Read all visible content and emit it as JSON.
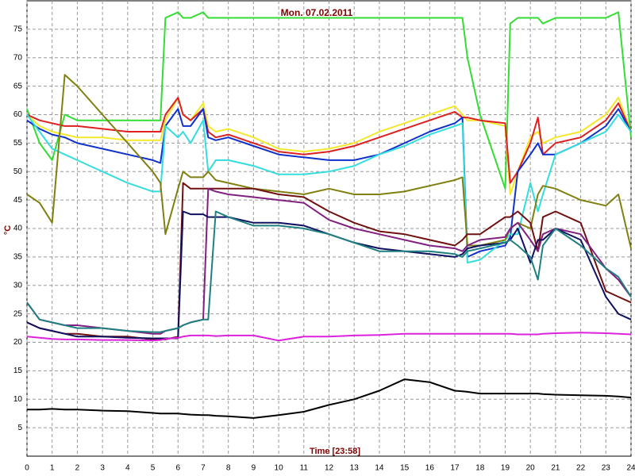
{
  "chart_data": {
    "type": "line",
    "title": "Mon. 07.02.2011",
    "x_label": "Time [23:58]",
    "y_label": "°C",
    "x": [
      0,
      0.5,
      1,
      1.5,
      2,
      3,
      4,
      5,
      5.3,
      5.5,
      6,
      6.2,
      6.5,
      7,
      7.2,
      7.5,
      8,
      9,
      10,
      11,
      12,
      13,
      14,
      15,
      16,
      17,
      17.3,
      17.5,
      18,
      19,
      19.2,
      19.5,
      20,
      20.3,
      20.5,
      21,
      22,
      23,
      23.5,
      24
    ],
    "xlim": [
      0,
      24
    ],
    "xticks": [
      0,
      1,
      2,
      3,
      4,
      5,
      6,
      7,
      8,
      9,
      10,
      11,
      12,
      13,
      14,
      15,
      16,
      17,
      18,
      19,
      20,
      21,
      22,
      23,
      24
    ],
    "ylim": [
      0,
      80
    ],
    "yticks": [
      5,
      10,
      15,
      20,
      25,
      30,
      35,
      40,
      45,
      50,
      55,
      60,
      65,
      70,
      75
    ],
    "grid": true,
    "series": [
      {
        "color": "#33dd33",
        "values": [
          61,
          55,
          52,
          60,
          59,
          59,
          59,
          59,
          59,
          77,
          78,
          77,
          77,
          78,
          77,
          77,
          77,
          77,
          77,
          77,
          77,
          77,
          77,
          77,
          77,
          77,
          77,
          70,
          60,
          47,
          76,
          77,
          77,
          77,
          76,
          77,
          77,
          77,
          78,
          56
        ]
      },
      {
        "color": "#f4e82a",
        "values": [
          60,
          58,
          57,
          56.5,
          56,
          56,
          55.5,
          55.5,
          55.5,
          59,
          63,
          60,
          59,
          62,
          58,
          57,
          57.5,
          56,
          54,
          53.5,
          54,
          55,
          57,
          58.5,
          60,
          61.5,
          60,
          59,
          59,
          58,
          46,
          50,
          56,
          57,
          55,
          56,
          57,
          60,
          63,
          57
        ]
      },
      {
        "color": "#dd2020",
        "values": [
          60,
          59,
          58.5,
          58,
          58,
          57.5,
          57,
          57,
          57,
          60,
          63,
          60,
          59,
          61,
          57,
          56,
          56.5,
          55,
          53.5,
          53,
          53.5,
          54.5,
          56,
          57.5,
          59,
          60.5,
          59.5,
          59.5,
          59,
          58.5,
          48,
          50,
          55,
          59.5,
          53,
          55,
          56,
          59,
          62,
          57
        ]
      },
      {
        "color": "#1030cc",
        "values": [
          59,
          57.5,
          56.5,
          56,
          55,
          54,
          53,
          52,
          51.5,
          58,
          61,
          58,
          58,
          61,
          56,
          55.5,
          56,
          54.5,
          53,
          52.5,
          52,
          52,
          53,
          55,
          57,
          58.5,
          59.5,
          35,
          36,
          37,
          38.5,
          50,
          53,
          55,
          53,
          53,
          55,
          58,
          61,
          57
        ]
      },
      {
        "color": "#33dddd",
        "values": [
          60,
          57,
          54,
          53,
          52,
          50,
          48,
          46.5,
          46.5,
          58,
          56,
          57,
          55,
          59,
          50,
          52,
          52,
          51,
          49.5,
          49.5,
          50,
          51,
          53,
          54.5,
          56.5,
          58,
          58.5,
          34,
          34.5,
          38,
          39,
          39,
          48,
          43,
          46,
          53,
          55,
          57,
          60,
          57
        ]
      },
      {
        "color": "#808010",
        "values": [
          46,
          44.5,
          41,
          67,
          65,
          60,
          55,
          50,
          48,
          39,
          47,
          50,
          49,
          49,
          50,
          48.5,
          48,
          47,
          46.5,
          46,
          47,
          46,
          46,
          46.5,
          47.5,
          48.5,
          49,
          37,
          37,
          38,
          40,
          41,
          40,
          46,
          47.5,
          47,
          45,
          44,
          46,
          36.5
        ]
      },
      {
        "color": "#701010",
        "values": [
          23.5,
          22.5,
          22,
          21.5,
          21.5,
          21,
          21,
          20.5,
          20.5,
          20.5,
          21,
          48,
          47,
          47,
          47,
          47,
          47,
          47,
          46,
          45.5,
          43,
          41,
          39.5,
          39,
          38,
          37,
          38,
          39,
          39,
          42,
          42,
          43,
          41,
          36,
          42,
          43,
          41,
          29,
          28,
          27
        ]
      },
      {
        "color": "#802080",
        "values": [
          27,
          24,
          23.5,
          23,
          23,
          22.5,
          22,
          21.5,
          21.5,
          22,
          22.5,
          23,
          23.5,
          24,
          47,
          46.5,
          46,
          45.5,
          45,
          44.5,
          41.5,
          40,
          39,
          38,
          37,
          36.5,
          36,
          37,
          38,
          38.5,
          40,
          41,
          38,
          36,
          39,
          40,
          39,
          33,
          31,
          28
        ]
      },
      {
        "color": "#101060",
        "values": [
          23.5,
          22.5,
          22,
          21.5,
          21,
          21,
          20.8,
          20.7,
          20.7,
          20.7,
          20.7,
          43,
          42.5,
          42.5,
          42,
          42,
          42,
          41,
          41,
          40.5,
          39,
          37.5,
          36.5,
          36,
          35.5,
          35,
          35.5,
          36.5,
          37,
          37.5,
          38,
          40,
          34,
          38,
          38,
          40,
          38,
          28,
          25,
          24
        ]
      },
      {
        "color": "#208080",
        "values": [
          27,
          24,
          23.5,
          23,
          22.5,
          22.5,
          22,
          21.8,
          21.8,
          22,
          22.5,
          23,
          23.5,
          24,
          24,
          43,
          42,
          40.5,
          40.5,
          40,
          39,
          37.5,
          36,
          36,
          36,
          35.5,
          35,
          36,
          36.5,
          37.5,
          38,
          37,
          35,
          31,
          37,
          40,
          37,
          33,
          31.5,
          28
        ]
      },
      {
        "color": "#dd22dd",
        "values": [
          21,
          20.8,
          20.6,
          20.5,
          20.5,
          20.4,
          20.4,
          20.3,
          20.4,
          20.6,
          20.8,
          21,
          21.2,
          21.2,
          21.2,
          21.1,
          21.2,
          21.2,
          20.3,
          21,
          21,
          21.2,
          21.3,
          21.5,
          21.5,
          21.5,
          21.5,
          21.5,
          21.5,
          21.5,
          21.5,
          21.4,
          21.4,
          21.4,
          21.5,
          21.6,
          21.7,
          21.6,
          21.5,
          21.4
        ]
      },
      {
        "color": "#000000",
        "values": [
          8.2,
          8.2,
          8.3,
          8.2,
          8.2,
          8,
          7.9,
          7.6,
          7.5,
          7.5,
          7.5,
          7.4,
          7.3,
          7.2,
          7.2,
          7.1,
          7,
          6.7,
          7.2,
          7.8,
          9,
          10,
          11.5,
          13.5,
          13,
          11.5,
          11.4,
          11.3,
          11,
          11,
          11,
          11,
          11,
          11,
          10.9,
          10.8,
          10.7,
          10.6,
          10.5,
          10.3
        ]
      }
    ]
  }
}
